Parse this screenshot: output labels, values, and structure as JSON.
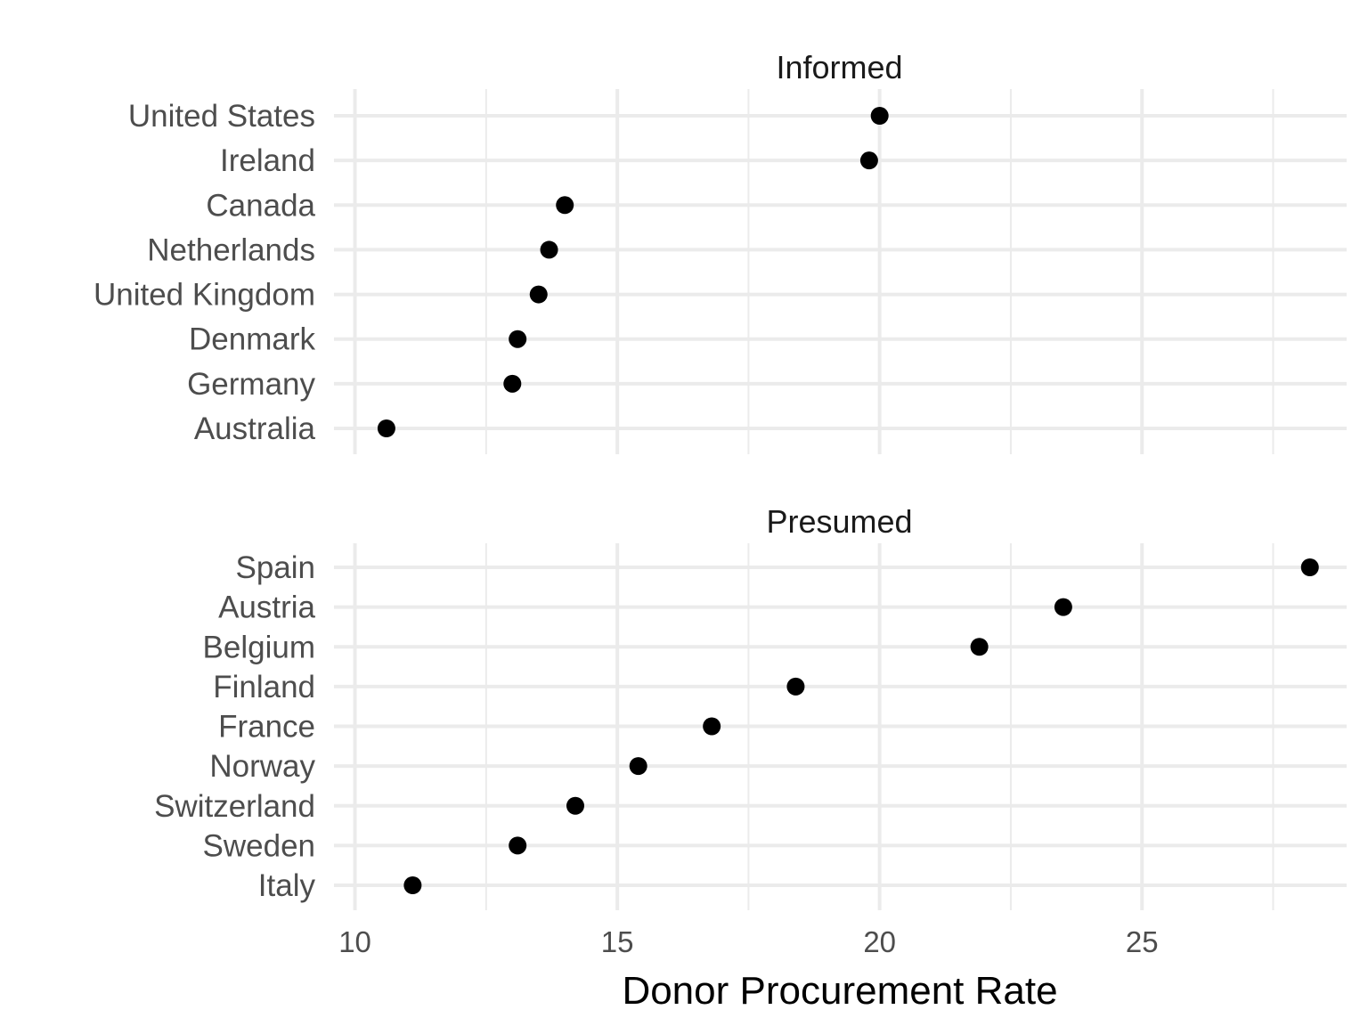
{
  "chart_data": {
    "type": "scatter",
    "xlabel": "Donor Procurement Rate",
    "xlim": [
      9.6,
      28.9
    ],
    "x_ticks": [
      10,
      15,
      20,
      25
    ],
    "x_minor_ticks": [
      12.5,
      17.5,
      22.5,
      27.5
    ],
    "grid": true,
    "point_color": "#000000",
    "grid_color": "#ebebeb",
    "facets": [
      {
        "title": "Informed",
        "points": [
          {
            "country": "United States",
            "value": 20.0
          },
          {
            "country": "Ireland",
            "value": 19.8
          },
          {
            "country": "Canada",
            "value": 14.0
          },
          {
            "country": "Netherlands",
            "value": 13.7
          },
          {
            "country": "United Kingdom",
            "value": 13.5
          },
          {
            "country": "Denmark",
            "value": 13.1
          },
          {
            "country": "Germany",
            "value": 13.0
          },
          {
            "country": "Australia",
            "value": 10.6
          }
        ]
      },
      {
        "title": "Presumed",
        "points": [
          {
            "country": "Spain",
            "value": 28.2
          },
          {
            "country": "Austria",
            "value": 23.5
          },
          {
            "country": "Belgium",
            "value": 21.9
          },
          {
            "country": "Finland",
            "value": 18.4
          },
          {
            "country": "France",
            "value": 16.8
          },
          {
            "country": "Norway",
            "value": 15.4
          },
          {
            "country": "Switzerland",
            "value": 14.2
          },
          {
            "country": "Sweden",
            "value": 13.1
          },
          {
            "country": "Italy",
            "value": 11.1
          }
        ]
      }
    ]
  }
}
